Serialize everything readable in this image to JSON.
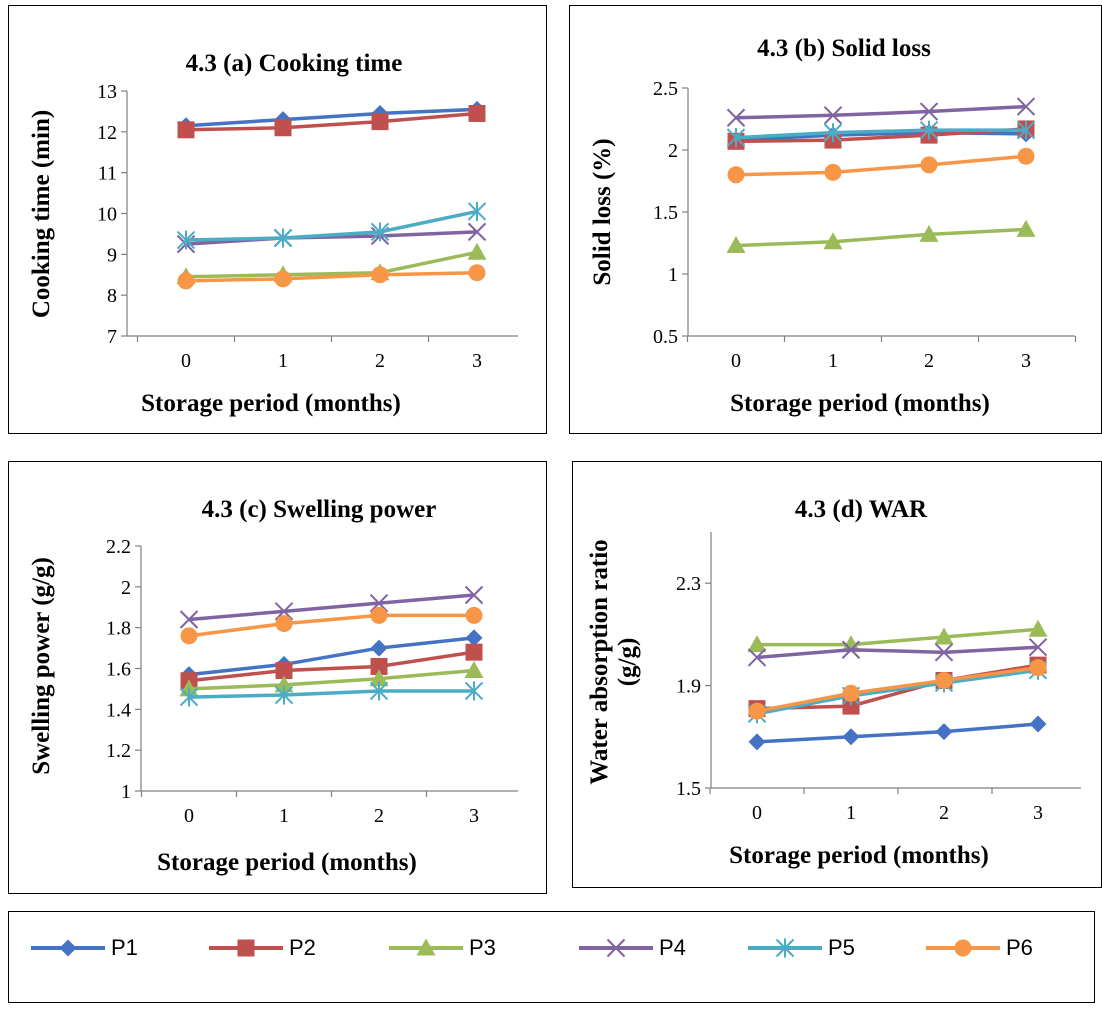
{
  "series_styles": [
    {
      "name": "P1",
      "color": "#4472C4",
      "marker": "diamond"
    },
    {
      "name": "P2",
      "color": "#C0504D",
      "marker": "square"
    },
    {
      "name": "P3",
      "color": "#9BBB59",
      "marker": "triangle"
    },
    {
      "name": "P4",
      "color": "#8064A2",
      "marker": "x"
    },
    {
      "name": "P5",
      "color": "#4BACC6",
      "marker": "star"
    },
    {
      "name": "P6",
      "color": "#F79646",
      "marker": "circle"
    }
  ],
  "legend": {
    "placement": "bottom",
    "entries": [
      "P1",
      "P2",
      "P3",
      "P4",
      "P5",
      "P6"
    ]
  },
  "chart_data": [
    {
      "id": "a",
      "type": "line",
      "title": "4.3 (a) Cooking time",
      "xlabel": "Storage period (months)",
      "ylabel": "Cooking time (min)",
      "x": [
        0,
        1,
        2,
        3
      ],
      "xticks": [
        "0",
        "1",
        "2",
        "3"
      ],
      "ylim": [
        7,
        13
      ],
      "yticks": [
        "7",
        "8",
        "9",
        "10",
        "11",
        "12",
        "13"
      ],
      "grid": false,
      "series": [
        {
          "name": "P1",
          "values": [
            12.15,
            12.3,
            12.45,
            12.55
          ]
        },
        {
          "name": "P2",
          "values": [
            12.05,
            12.1,
            12.25,
            12.45
          ]
        },
        {
          "name": "P3",
          "values": [
            8.45,
            8.5,
            8.55,
            9.05
          ]
        },
        {
          "name": "P4",
          "values": [
            9.25,
            9.4,
            9.45,
            9.55
          ]
        },
        {
          "name": "P5",
          "values": [
            9.35,
            9.4,
            9.55,
            10.05
          ]
        },
        {
          "name": "P6",
          "values": [
            8.35,
            8.4,
            8.5,
            8.55
          ]
        }
      ]
    },
    {
      "id": "b",
      "type": "line",
      "title": "4.3 (b) Solid loss",
      "xlabel": "Storage period (months)",
      "ylabel": "Solid loss (%)",
      "x": [
        0,
        1,
        2,
        3
      ],
      "xticks": [
        "0",
        "1",
        "2",
        "3"
      ],
      "ylim": [
        0.5,
        2.5
      ],
      "yticks": [
        "0.5",
        "1",
        "1.5",
        "2",
        "2.5"
      ],
      "grid": false,
      "series": [
        {
          "name": "P1",
          "values": [
            2.08,
            2.12,
            2.14,
            2.13
          ]
        },
        {
          "name": "P2",
          "values": [
            2.07,
            2.08,
            2.12,
            2.17
          ]
        },
        {
          "name": "P3",
          "values": [
            1.23,
            1.26,
            1.32,
            1.36
          ]
        },
        {
          "name": "P4",
          "values": [
            2.26,
            2.28,
            2.31,
            2.35
          ]
        },
        {
          "name": "P5",
          "values": [
            2.1,
            2.14,
            2.16,
            2.16
          ]
        },
        {
          "name": "P6",
          "values": [
            1.8,
            1.82,
            1.88,
            1.95
          ]
        }
      ]
    },
    {
      "id": "c",
      "type": "line",
      "title": "4.3 (c) Swelling power",
      "xlabel": "Storage period (months)",
      "ylabel": "Swelling power (g/g)",
      "x": [
        0,
        1,
        2,
        3
      ],
      "xticks": [
        "0",
        "1",
        "2",
        "3"
      ],
      "ylim": [
        1,
        2.2
      ],
      "yticks": [
        "1",
        "1.2",
        "1.4",
        "1.6",
        "1.8",
        "2",
        "2.2"
      ],
      "grid": false,
      "series": [
        {
          "name": "P1",
          "values": [
            1.57,
            1.62,
            1.7,
            1.75
          ]
        },
        {
          "name": "P2",
          "values": [
            1.54,
            1.59,
            1.61,
            1.68
          ]
        },
        {
          "name": "P3",
          "values": [
            1.5,
            1.52,
            1.55,
            1.59
          ]
        },
        {
          "name": "P4",
          "values": [
            1.84,
            1.88,
            1.92,
            1.96
          ]
        },
        {
          "name": "P5",
          "values": [
            1.46,
            1.47,
            1.49,
            1.49
          ]
        },
        {
          "name": "P6",
          "values": [
            1.76,
            1.82,
            1.86,
            1.86
          ]
        }
      ]
    },
    {
      "id": "d",
      "type": "line",
      "title": "4.3 (d) WAR",
      "xlabel": "Storage period (months)",
      "ylabel": "Water absorption ratio (g/g)",
      "x": [
        0,
        1,
        2,
        3
      ],
      "xticks": [
        "0",
        "1",
        "2",
        "3"
      ],
      "ylim": [
        1.5,
        2.5
      ],
      "yticks": [
        "1.5",
        "1.9",
        "2.3"
      ],
      "grid": false,
      "series": [
        {
          "name": "P1",
          "values": [
            1.68,
            1.7,
            1.72,
            1.75
          ]
        },
        {
          "name": "P2",
          "values": [
            1.81,
            1.82,
            1.92,
            1.98
          ]
        },
        {
          "name": "P3",
          "values": [
            2.06,
            2.06,
            2.09,
            2.12
          ]
        },
        {
          "name": "P4",
          "values": [
            2.01,
            2.04,
            2.03,
            2.05
          ]
        },
        {
          "name": "P5",
          "values": [
            1.79,
            1.86,
            1.91,
            1.96
          ]
        },
        {
          "name": "P6",
          "values": [
            1.8,
            1.87,
            1.92,
            1.97
          ]
        }
      ]
    }
  ]
}
